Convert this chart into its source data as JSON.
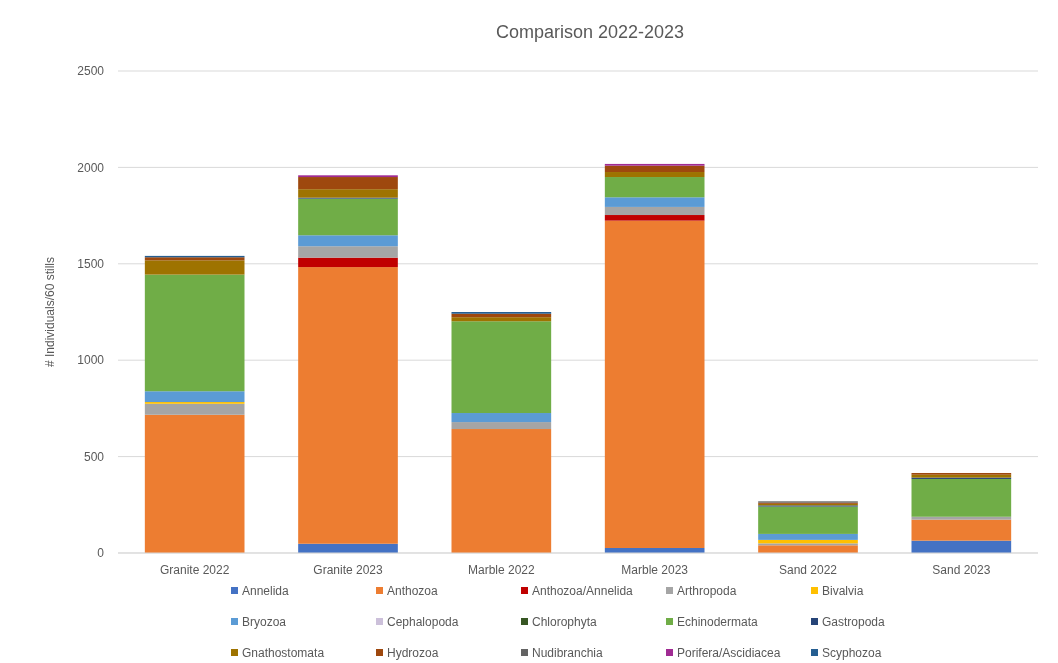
{
  "chart_data": {
    "type": "bar",
    "stacked": true,
    "title": "Comparison 2022-2023",
    "ylabel": "# Individuals/60 stills",
    "categories": [
      "Granite 2022",
      "Granite 2023",
      "Marble 2022",
      "Marble 2023",
      "Sand 2022",
      "Sand 2023"
    ],
    "ylim": [
      0,
      2500
    ],
    "yticks": [
      0,
      500,
      1000,
      1500,
      2000,
      2500
    ],
    "grid": "y",
    "legend": "bottom",
    "series": [
      {
        "name": "Annelida",
        "color": "#4472c4",
        "values": [
          0,
          48,
          0,
          26,
          0,
          64
        ]
      },
      {
        "name": "Anthozoa",
        "color": "#ed7d31",
        "values": [
          717,
          1435,
          643,
          1698,
          40,
          109
        ]
      },
      {
        "name": "Anthozoa/Annelida",
        "color": "#c00000",
        "values": [
          0,
          49,
          0,
          29,
          0,
          0
        ]
      },
      {
        "name": "Arthropoda",
        "color": "#a5a5a5",
        "values": [
          57,
          59,
          36,
          42,
          10,
          15
        ]
      },
      {
        "name": "Bivalvia",
        "color": "#ffc000",
        "values": [
          9,
          0,
          0,
          0,
          18,
          0
        ]
      },
      {
        "name": "Bryozoa",
        "color": "#5b9bd5",
        "values": [
          56,
          57,
          47,
          50,
          31,
          0
        ]
      },
      {
        "name": "Cephalopoda",
        "color": "#ccc0da",
        "values": [
          0,
          0,
          0,
          0,
          0,
          null
        ]
      },
      {
        "name": "Chlorophyta",
        "color": "#375623",
        "values": [
          0,
          null,
          0,
          0,
          0,
          0
        ]
      },
      {
        "name": "Echinodermata",
        "color": "#70ad47",
        "values": [
          605,
          190,
          476,
          105,
          142,
          196
        ]
      },
      {
        "name": "Gastropoda",
        "color": "#264478",
        "values": [
          0,
          5,
          0,
          0,
          6,
          7
        ]
      },
      {
        "name": "Gnathostomata",
        "color": "#9e7300",
        "values": [
          74,
          44,
          21,
          26,
          8,
          15
        ]
      },
      {
        "name": "Hydrozoa",
        "color": "#9e480e",
        "values": [
          16,
          63,
          18,
          33,
          6,
          9
        ]
      },
      {
        "name": "Nudibranchia",
        "color": "#636363",
        "values": [
          null,
          0,
          0,
          0,
          7,
          0
        ]
      },
      {
        "name": "Porifera/Ascidiacea",
        "color": "#a02b93",
        "values": [
          0,
          9,
          0,
          9,
          0,
          0
        ]
      },
      {
        "name": "Scyphozoa",
        "color": "#255e91",
        "values": [
          7,
          0,
          9,
          0,
          0,
          0
        ]
      }
    ]
  }
}
